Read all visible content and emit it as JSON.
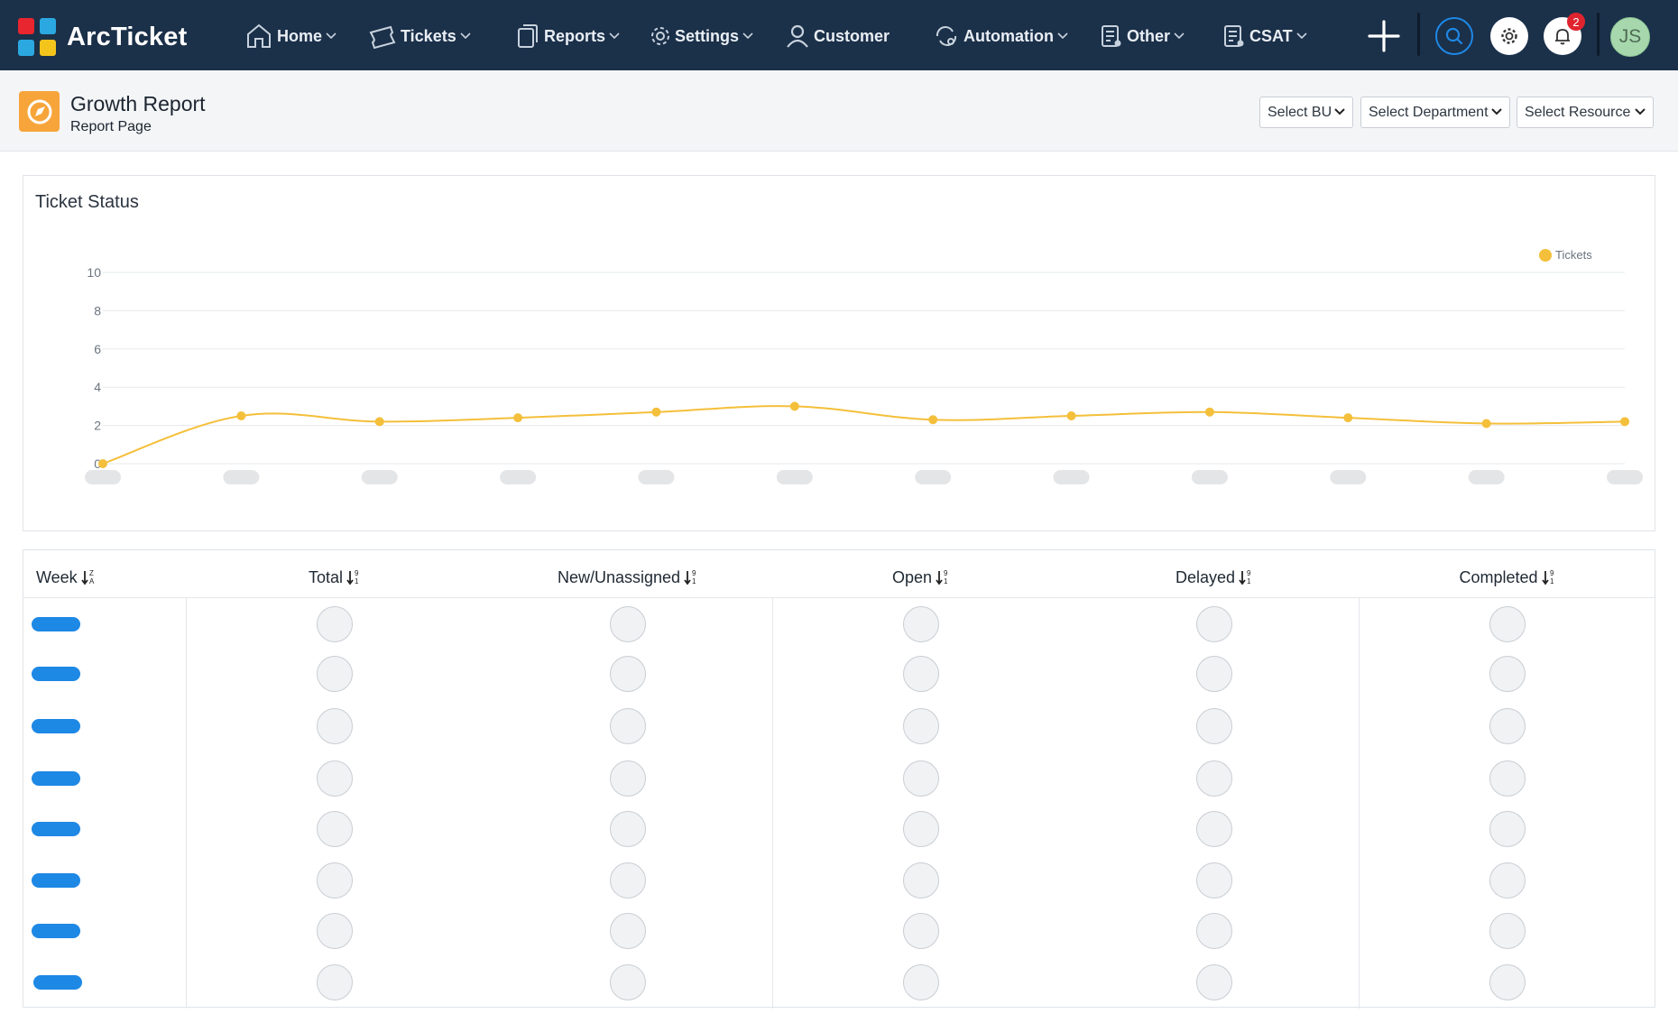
{
  "app": {
    "name": "ArcTicket"
  },
  "nav": {
    "items": [
      {
        "label": "Home",
        "icon": "home-icon",
        "has_menu": true
      },
      {
        "label": "Tickets",
        "icon": "ticket-icon",
        "has_menu": true
      },
      {
        "label": "Reports",
        "icon": "reports-icon",
        "has_menu": true
      },
      {
        "label": "Settings",
        "icon": "gear-icon",
        "has_menu": true
      },
      {
        "label": "Customer",
        "icon": "user-icon",
        "has_menu": false
      },
      {
        "label": "Automation",
        "icon": "automation-icon",
        "has_menu": true
      },
      {
        "label": "Other",
        "icon": "list-icon",
        "has_menu": true
      },
      {
        "label": "CSAT",
        "icon": "csat-icon",
        "has_menu": true
      }
    ],
    "notification_count": "2",
    "avatar_initials": "JS"
  },
  "page": {
    "title": "Growth Report",
    "subtitle": "Report Page",
    "filters": {
      "bu": "Select BU",
      "department": "Select Department",
      "resource": "Select Resource"
    }
  },
  "chart_data": {
    "type": "line",
    "title": "Ticket Status",
    "categories": [
      "",
      "",
      "",
      "",
      "",
      "",
      "",
      "",
      "",
      "",
      "",
      ""
    ],
    "series": [
      {
        "name": "Tickets",
        "values": [
          0,
          2.5,
          2.2,
          2.4,
          2.7,
          3.0,
          2.3,
          2.5,
          2.7,
          2.4,
          2.1,
          2.2
        ],
        "color": "#f4bf3a"
      }
    ],
    "yticks": [
      0,
      2,
      4,
      6,
      8,
      10
    ],
    "ylim": [
      0,
      10
    ],
    "grid": true,
    "legend": "top-right"
  },
  "table": {
    "columns": [
      {
        "label": "Week",
        "sort": "alpha"
      },
      {
        "label": "Total",
        "sort": "numeric"
      },
      {
        "label": "New/Unassigned",
        "sort": "numeric"
      },
      {
        "label": "Open",
        "sort": "numeric"
      },
      {
        "label": "Delayed",
        "sort": "numeric"
      },
      {
        "label": "Completed",
        "sort": "numeric"
      }
    ],
    "row_count": 8
  },
  "colors": {
    "navbar": "#1b3049",
    "accent": "#1e88e5",
    "series": "#f4bf3a",
    "page_icon": "#f7a53a"
  }
}
